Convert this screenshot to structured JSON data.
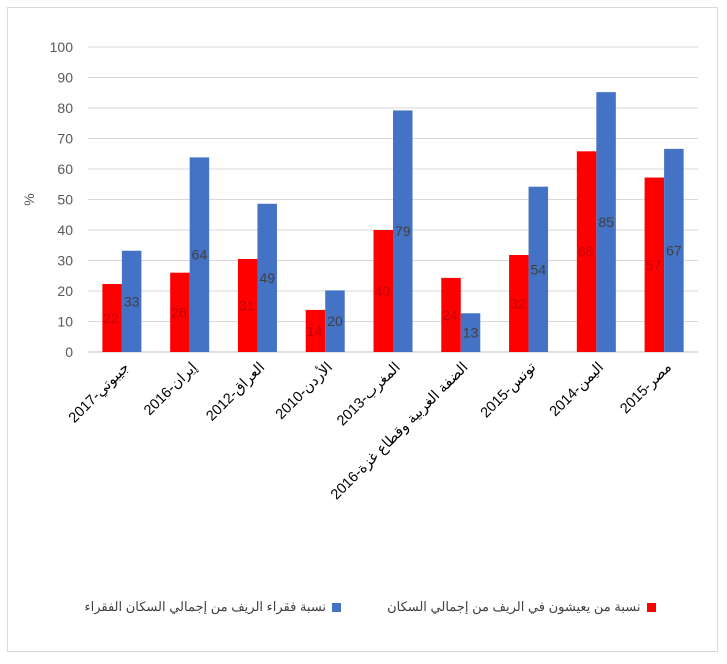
{
  "chart_data": {
    "type": "bar",
    "title": "",
    "xlabel": "",
    "ylabel": "%",
    "ylim": [
      0,
      100
    ],
    "yticks": [
      0,
      10,
      20,
      30,
      40,
      50,
      60,
      70,
      80,
      90,
      100
    ],
    "grid": true,
    "legend_position": "bottom",
    "categories": [
      "جيبوتي-2017",
      "إيران-2016",
      "العراق-2012",
      "الأردن-2010",
      "المغرب-2013",
      "الضفة الغربية وقطاع غزة-2016",
      "تونس-2015",
      "اليمن-2014",
      "مصر-2015"
    ],
    "series": [
      {
        "name": "نسبة من يعيشون في الريف من إجمالي السكان",
        "color": "#ff0000",
        "values": [
          22.3,
          26,
          30.5,
          13.8,
          40,
          24.3,
          31.8,
          65.8,
          57.2
        ],
        "labels": [
          "22",
          "26",
          "31",
          "14",
          "40",
          "24",
          "32",
          "66",
          "57"
        ]
      },
      {
        "name": "نسبة فقراء الريف من إجمالي السكان الفقراء",
        "color": "#4472c4",
        "values": [
          33.2,
          63.8,
          48.6,
          20.2,
          79.2,
          12.7,
          54.2,
          85.2,
          66.6
        ],
        "labels": [
          "33",
          "64",
          "49",
          "20",
          "79",
          "13",
          "54",
          "85",
          "67"
        ]
      }
    ]
  }
}
